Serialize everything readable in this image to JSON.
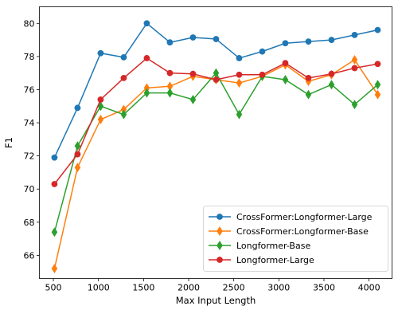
{
  "chart_data": {
    "type": "line",
    "title": "",
    "xlabel": "Max Input Length",
    "ylabel": "F1",
    "xlim": [
      345,
      4255
    ],
    "ylim": [
      64.6,
      81.0
    ],
    "xticks": [
      500,
      1000,
      1500,
      2000,
      2500,
      3000,
      3500,
      4000
    ],
    "yticks": [
      66,
      68,
      70,
      72,
      74,
      76,
      78,
      80
    ],
    "grid": false,
    "legend_position": "lower-right",
    "x": [
      512,
      768,
      1024,
      1280,
      1536,
      1792,
      2048,
      2304,
      2560,
      2816,
      3072,
      3328,
      3584,
      3840,
      4096
    ],
    "series": [
      {
        "name": "CrossFormer:Longformer-Large",
        "color": "#1f77b4",
        "marker": "circle",
        "values": [
          71.9,
          74.9,
          78.2,
          77.95,
          80.0,
          78.85,
          79.15,
          79.05,
          77.9,
          78.3,
          78.8,
          78.9,
          79.0,
          79.3,
          79.6
        ]
      },
      {
        "name": "CrossFormer:Longformer-Base",
        "color": "#ff7f0e",
        "marker": "thin-diamond",
        "values": [
          65.2,
          71.3,
          74.2,
          74.8,
          76.1,
          76.2,
          76.8,
          76.6,
          76.4,
          76.8,
          77.5,
          76.5,
          76.9,
          77.8,
          75.7
        ]
      },
      {
        "name": "Longformer-Base",
        "color": "#2ca02c",
        "marker": "thin-diamond",
        "values": [
          67.4,
          72.6,
          75.0,
          74.5,
          75.8,
          75.8,
          75.4,
          77.0,
          74.5,
          76.8,
          76.6,
          75.7,
          76.3,
          75.1,
          76.3
        ]
      },
      {
        "name": "Longformer-Large",
        "color": "#d62728",
        "marker": "circle",
        "values": [
          70.3,
          72.1,
          75.4,
          76.7,
          77.9,
          77.0,
          76.95,
          76.6,
          76.9,
          76.9,
          77.6,
          76.7,
          76.95,
          77.3,
          77.55
        ]
      }
    ]
  }
}
